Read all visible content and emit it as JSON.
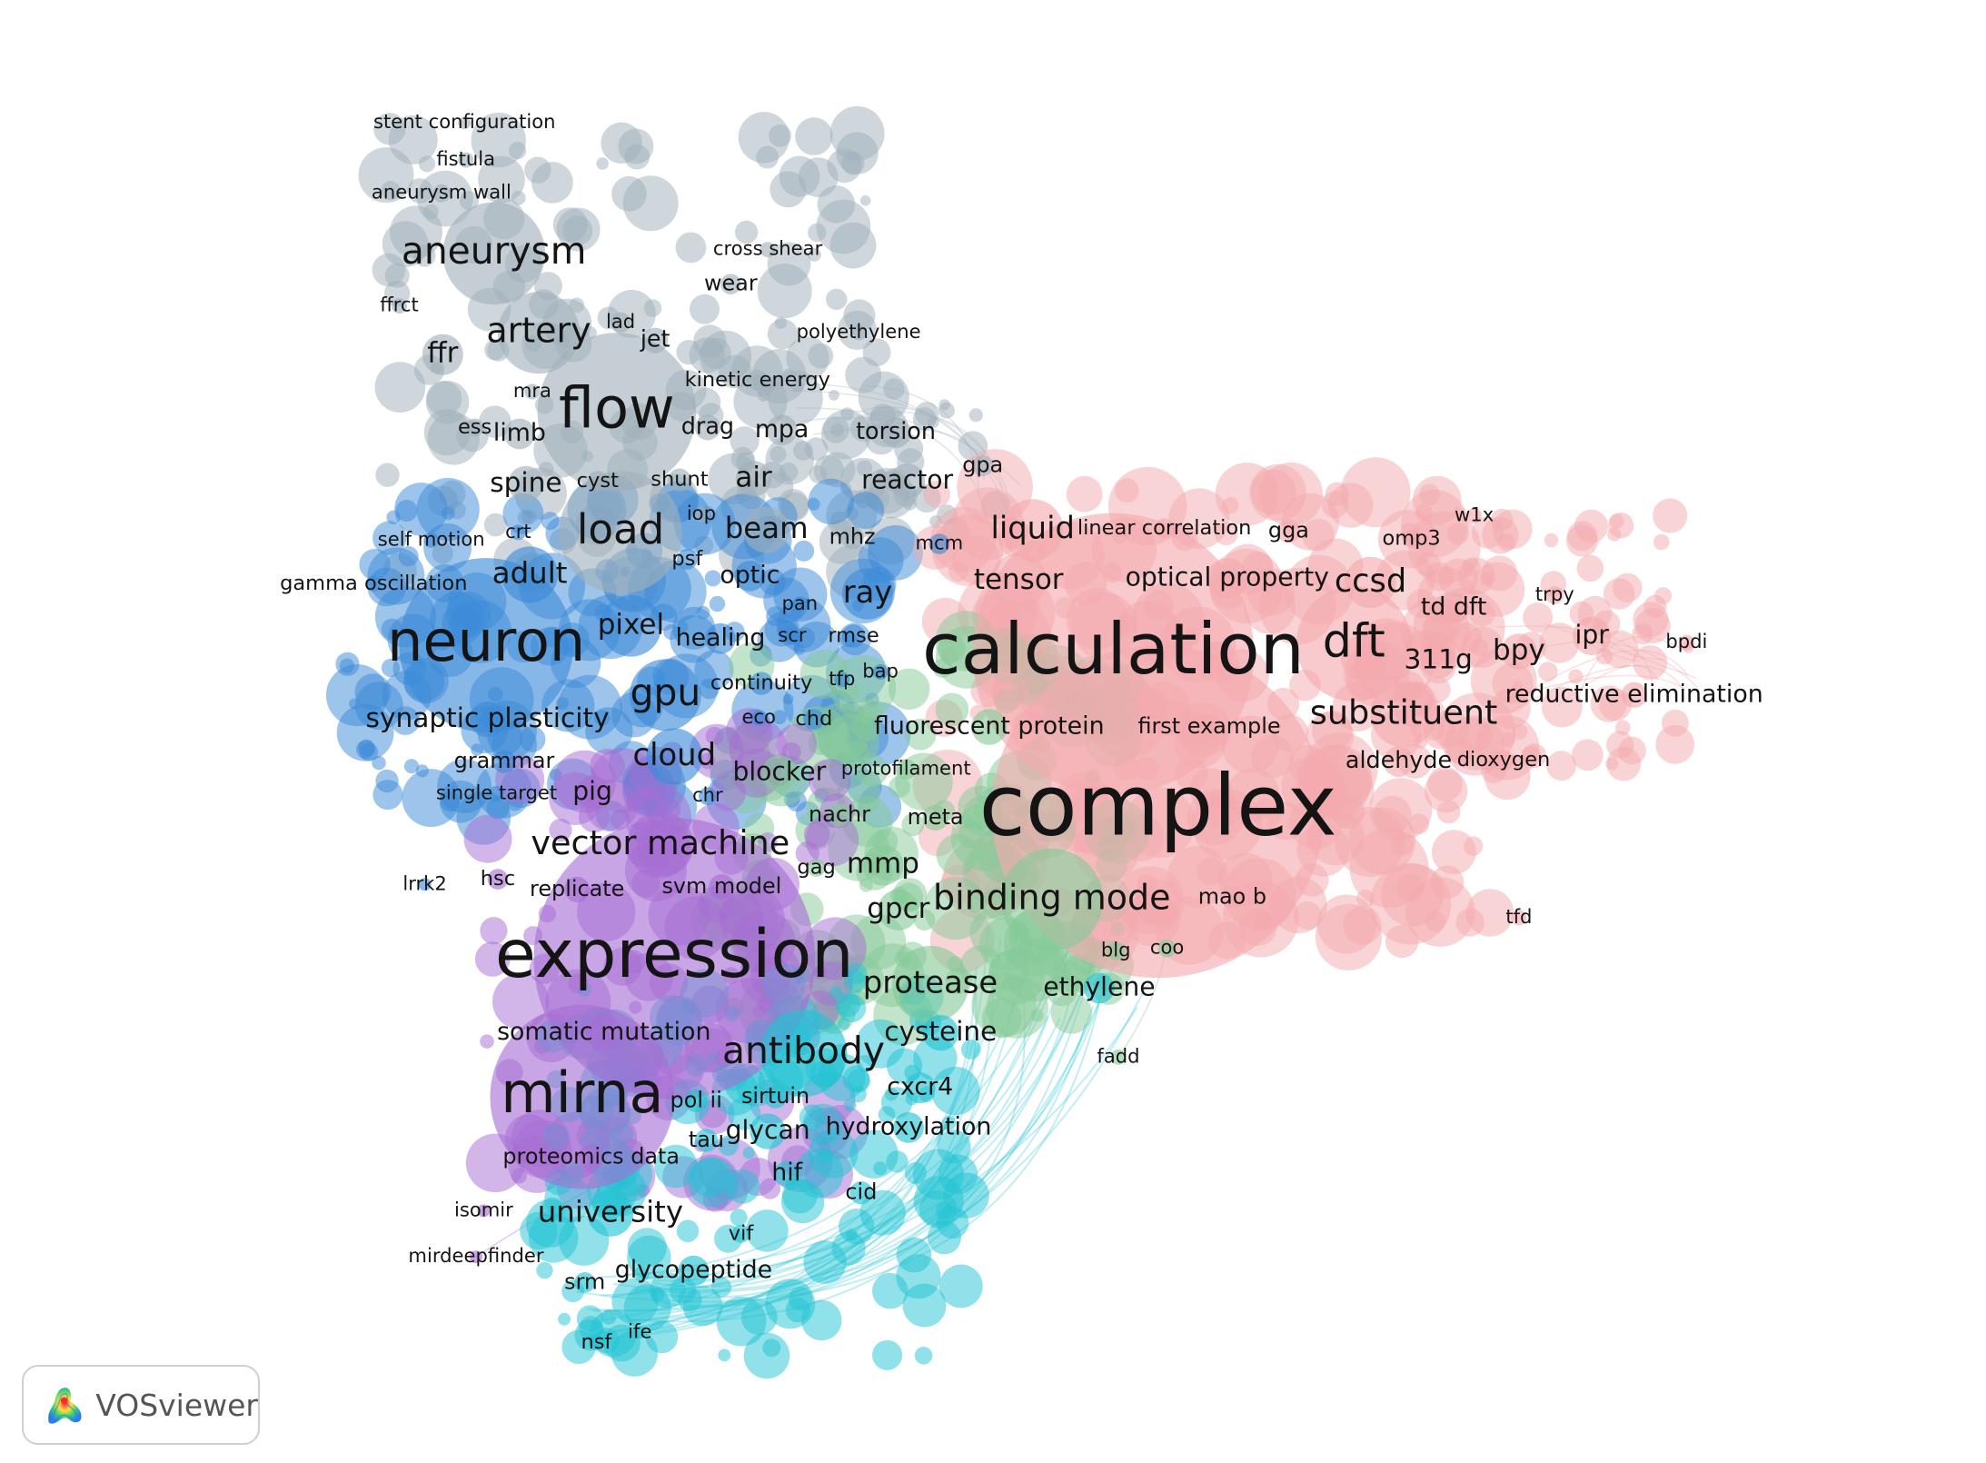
{
  "app": {
    "name": "VOSviewer"
  },
  "colors": {
    "gray": "#9fb0ba",
    "blue": "#3b8ad8",
    "pink": "#f4a9ae",
    "green": "#86c998",
    "purple": "#a66ed4",
    "cyan": "#22c3d3"
  },
  "terms": [
    {
      "label": "stent configuration",
      "cluster": "gray"
    },
    {
      "label": "fistula",
      "cluster": "gray"
    },
    {
      "label": "aneurysm wall",
      "cluster": "gray"
    },
    {
      "label": "aneurysm",
      "cluster": "gray"
    },
    {
      "label": "cross shear",
      "cluster": "gray"
    },
    {
      "label": "wear",
      "cluster": "gray"
    },
    {
      "label": "ffrct",
      "cluster": "gray"
    },
    {
      "label": "lad",
      "cluster": "gray"
    },
    {
      "label": "artery",
      "cluster": "gray"
    },
    {
      "label": "jet",
      "cluster": "gray"
    },
    {
      "label": "ffr",
      "cluster": "gray"
    },
    {
      "label": "polyethylene",
      "cluster": "gray"
    },
    {
      "label": "kinetic energy",
      "cluster": "gray"
    },
    {
      "label": "mra",
      "cluster": "gray"
    },
    {
      "label": "flow",
      "cluster": "gray"
    },
    {
      "label": "ess",
      "cluster": "gray"
    },
    {
      "label": "limb",
      "cluster": "gray"
    },
    {
      "label": "drag",
      "cluster": "gray"
    },
    {
      "label": "mpa",
      "cluster": "gray"
    },
    {
      "label": "torsion",
      "cluster": "gray"
    },
    {
      "label": "gpa",
      "cluster": "gray"
    },
    {
      "label": "spine",
      "cluster": "gray"
    },
    {
      "label": "cyst",
      "cluster": "gray"
    },
    {
      "label": "shunt",
      "cluster": "gray"
    },
    {
      "label": "air",
      "cluster": "gray"
    },
    {
      "label": "reactor",
      "cluster": "gray"
    },
    {
      "label": "iop",
      "cluster": "gray"
    },
    {
      "label": "load",
      "cluster": "gray"
    },
    {
      "label": "beam",
      "cluster": "gray"
    },
    {
      "label": "mhz",
      "cluster": "gray"
    },
    {
      "label": "self motion",
      "cluster": "blue"
    },
    {
      "label": "crt",
      "cluster": "blue"
    },
    {
      "label": "psf",
      "cluster": "blue"
    },
    {
      "label": "optic",
      "cluster": "blue"
    },
    {
      "label": "mcm",
      "cluster": "blue"
    },
    {
      "label": "gamma oscillation",
      "cluster": "blue"
    },
    {
      "label": "adult",
      "cluster": "blue"
    },
    {
      "label": "ray",
      "cluster": "blue"
    },
    {
      "label": "pan",
      "cluster": "blue"
    },
    {
      "label": "pixel",
      "cluster": "blue"
    },
    {
      "label": "healing",
      "cluster": "blue"
    },
    {
      "label": "scr",
      "cluster": "blue"
    },
    {
      "label": "rmse",
      "cluster": "blue"
    },
    {
      "label": "neuron",
      "cluster": "blue"
    },
    {
      "label": "continuity",
      "cluster": "blue"
    },
    {
      "label": "tfp",
      "cluster": "blue"
    },
    {
      "label": "bap",
      "cluster": "blue"
    },
    {
      "label": "gpu",
      "cluster": "blue"
    },
    {
      "label": "synaptic plasticity",
      "cluster": "blue"
    },
    {
      "label": "eco",
      "cluster": "blue"
    },
    {
      "label": "chd",
      "cluster": "blue"
    },
    {
      "label": "cloud",
      "cluster": "blue"
    },
    {
      "label": "grammar",
      "cluster": "blue"
    },
    {
      "label": "blocker",
      "cluster": "green"
    },
    {
      "label": "protofilament",
      "cluster": "green"
    },
    {
      "label": "single target",
      "cluster": "blue"
    },
    {
      "label": "pig",
      "cluster": "purple"
    },
    {
      "label": "chr",
      "cluster": "blue"
    },
    {
      "label": "nachr",
      "cluster": "green"
    },
    {
      "label": "meta",
      "cluster": "green"
    },
    {
      "label": "liquid",
      "cluster": "pink"
    },
    {
      "label": "linear correlation",
      "cluster": "pink"
    },
    {
      "label": "gga",
      "cluster": "pink"
    },
    {
      "label": "w1x",
      "cluster": "pink"
    },
    {
      "label": "omp3",
      "cluster": "pink"
    },
    {
      "label": "tensor",
      "cluster": "pink"
    },
    {
      "label": "optical property",
      "cluster": "pink"
    },
    {
      "label": "ccsd",
      "cluster": "pink"
    },
    {
      "label": "trpy",
      "cluster": "pink"
    },
    {
      "label": "td dft",
      "cluster": "pink"
    },
    {
      "label": "ipr",
      "cluster": "pink"
    },
    {
      "label": "calculation",
      "cluster": "pink"
    },
    {
      "label": "dft",
      "cluster": "pink"
    },
    {
      "label": "bpy",
      "cluster": "pink"
    },
    {
      "label": "bpdi",
      "cluster": "pink"
    },
    {
      "label": "311g",
      "cluster": "pink"
    },
    {
      "label": "reductive elimination",
      "cluster": "pink"
    },
    {
      "label": "substituent",
      "cluster": "pink"
    },
    {
      "label": "fluorescent protein",
      "cluster": "green"
    },
    {
      "label": "first example",
      "cluster": "pink"
    },
    {
      "label": "aldehyde",
      "cluster": "pink"
    },
    {
      "label": "dioxygen",
      "cluster": "pink"
    },
    {
      "label": "complex",
      "cluster": "pink"
    },
    {
      "label": "vector machine",
      "cluster": "purple"
    },
    {
      "label": "lrrk2",
      "cluster": "blue"
    },
    {
      "label": "hsc",
      "cluster": "purple"
    },
    {
      "label": "replicate",
      "cluster": "purple"
    },
    {
      "label": "svm model",
      "cluster": "purple"
    },
    {
      "label": "gag",
      "cluster": "green"
    },
    {
      "label": "mmp",
      "cluster": "green"
    },
    {
      "label": "gpcr",
      "cluster": "green"
    },
    {
      "label": "binding mode",
      "cluster": "green"
    },
    {
      "label": "mao b",
      "cluster": "pink"
    },
    {
      "label": "tfd",
      "cluster": "pink"
    },
    {
      "label": "expression",
      "cluster": "purple"
    },
    {
      "label": "blg",
      "cluster": "green"
    },
    {
      "label": "coo",
      "cluster": "green"
    },
    {
      "label": "protease",
      "cluster": "green"
    },
    {
      "label": "ethylene",
      "cluster": "cyan"
    },
    {
      "label": "somatic mutation",
      "cluster": "purple"
    },
    {
      "label": "cysteine",
      "cluster": "cyan"
    },
    {
      "label": "antibody",
      "cluster": "cyan"
    },
    {
      "label": "fadd",
      "cluster": "green"
    },
    {
      "label": "cxcr4",
      "cluster": "cyan"
    },
    {
      "label": "mirna",
      "cluster": "purple"
    },
    {
      "label": "pol ii",
      "cluster": "cyan"
    },
    {
      "label": "sirtuin",
      "cluster": "cyan"
    },
    {
      "label": "hydroxylation",
      "cluster": "cyan"
    },
    {
      "label": "tau",
      "cluster": "cyan"
    },
    {
      "label": "glycan",
      "cluster": "cyan"
    },
    {
      "label": "proteomics data",
      "cluster": "purple"
    },
    {
      "label": "hif",
      "cluster": "cyan"
    },
    {
      "label": "cid",
      "cluster": "cyan"
    },
    {
      "label": "isomir",
      "cluster": "purple"
    },
    {
      "label": "university",
      "cluster": "cyan"
    },
    {
      "label": "vif",
      "cluster": "cyan"
    },
    {
      "label": "mirdeepfinder",
      "cluster": "purple"
    },
    {
      "label": "glycopeptide",
      "cluster": "cyan"
    },
    {
      "label": "srm",
      "cluster": "cyan"
    },
    {
      "label": "ife",
      "cluster": "cyan"
    },
    {
      "label": "nsf",
      "cluster": "cyan"
    }
  ]
}
